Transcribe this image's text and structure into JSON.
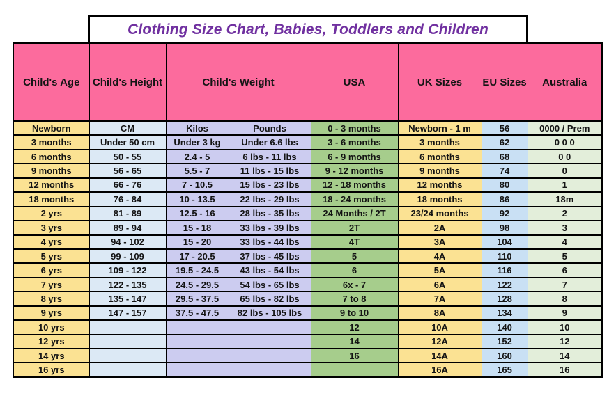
{
  "title": "Clothing Size Chart, Babies, Toddlers and Children",
  "header": {
    "age": "Child's Age",
    "height": "Child's Height",
    "weight": "Child's Weight",
    "usa": "USA",
    "uk": "UK Sizes",
    "eu": "EU Sizes",
    "australia": "Australia"
  },
  "colors": {
    "header_bg": "#FC6B9D",
    "age_col_bg": "#FBE293",
    "height_col_bg": "#DCE9F5",
    "weight_col_bg": "#CCCCF0",
    "usa_col_bg": "#A6CD8C",
    "uk_col_bg": "#FBE293",
    "eu_col_bg": "#C9E0F4",
    "australia_col_bg": "#E3EEDA",
    "title_text": "#7030A0",
    "grid_border": "#000000"
  },
  "chart_data": {
    "type": "table",
    "title": "Clothing Size Chart, Babies, Toddlers and Children",
    "columns": [
      "Child's Age",
      "Child's Height",
      "Child's Weight (Kilos)",
      "Child's Weight (Pounds)",
      "USA",
      "UK Sizes",
      "EU Sizes",
      "Australia"
    ],
    "rows": [
      [
        "Newborn",
        "CM",
        "Kilos",
        "Pounds",
        "0 - 3 months",
        "Newborn - 1 m",
        "56",
        "0000 / Prem"
      ],
      [
        "3 months",
        "Under 50 cm",
        "Under 3 kg",
        "Under 6.6 lbs",
        "3 - 6 months",
        "3 months",
        "62",
        "0 0 0"
      ],
      [
        "6 months",
        "50 - 55",
        "2.4 - 5",
        "6 lbs - 11 lbs",
        "6 - 9 months",
        "6 months",
        "68",
        "0 0"
      ],
      [
        "9 months",
        "56 - 65",
        "5.5 - 7",
        "11 lbs - 15 lbs",
        "9 - 12 months",
        "9 months",
        "74",
        "0"
      ],
      [
        "12 months",
        "66 - 76",
        "7 - 10.5",
        "15 lbs - 23 lbs",
        "12 - 18 months",
        "12 months",
        "80",
        "1"
      ],
      [
        "18 months",
        "76 - 84",
        "10 - 13.5",
        "22 lbs - 29 lbs",
        "18 - 24 months",
        "18 months",
        "86",
        "18m"
      ],
      [
        "2 yrs",
        "81 - 89",
        "12.5 - 16",
        "28 lbs - 35 lbs",
        "24 Months / 2T",
        "23/24 months",
        "92",
        "2"
      ],
      [
        "3 yrs",
        "89 - 94",
        "15 - 18",
        "33 lbs - 39 lbs",
        "2T",
        "2A",
        "98",
        "3"
      ],
      [
        "4 yrs",
        "94 - 102",
        "15 - 20",
        "33 lbs - 44 lbs",
        "4T",
        "3A",
        "104",
        "4"
      ],
      [
        "5 yrs",
        "99 - 109",
        "17 - 20.5",
        "37 lbs - 45 lbs",
        "5",
        "4A",
        "110",
        "5"
      ],
      [
        "6 yrs",
        "109 - 122",
        "19.5 - 24.5",
        "43 lbs - 54 lbs",
        "6",
        "5A",
        "116",
        "6"
      ],
      [
        "7 yrs",
        "122 - 135",
        "24.5 - 29.5",
        "54 lbs - 65 lbs",
        "6x - 7",
        "6A",
        "122",
        "7"
      ],
      [
        "8 yrs",
        "135 - 147",
        "29.5 - 37.5",
        "65 lbs - 82 lbs",
        "7 to 8",
        "7A",
        "128",
        "8"
      ],
      [
        "9 yrs",
        "147 - 157",
        "37.5 - 47.5",
        "82 lbs - 105 lbs",
        "9 to 10",
        "8A",
        "134",
        "9"
      ],
      [
        "10 yrs",
        "",
        "",
        "",
        "12",
        "10A",
        "140",
        "10"
      ],
      [
        "12 yrs",
        "",
        "",
        "",
        "14",
        "12A",
        "152",
        "12"
      ],
      [
        "14 yrs",
        "",
        "",
        "",
        "16",
        "14A",
        "160",
        "14"
      ],
      [
        "16 yrs",
        "",
        "",
        "",
        "",
        "16A",
        "165",
        "16"
      ]
    ]
  }
}
